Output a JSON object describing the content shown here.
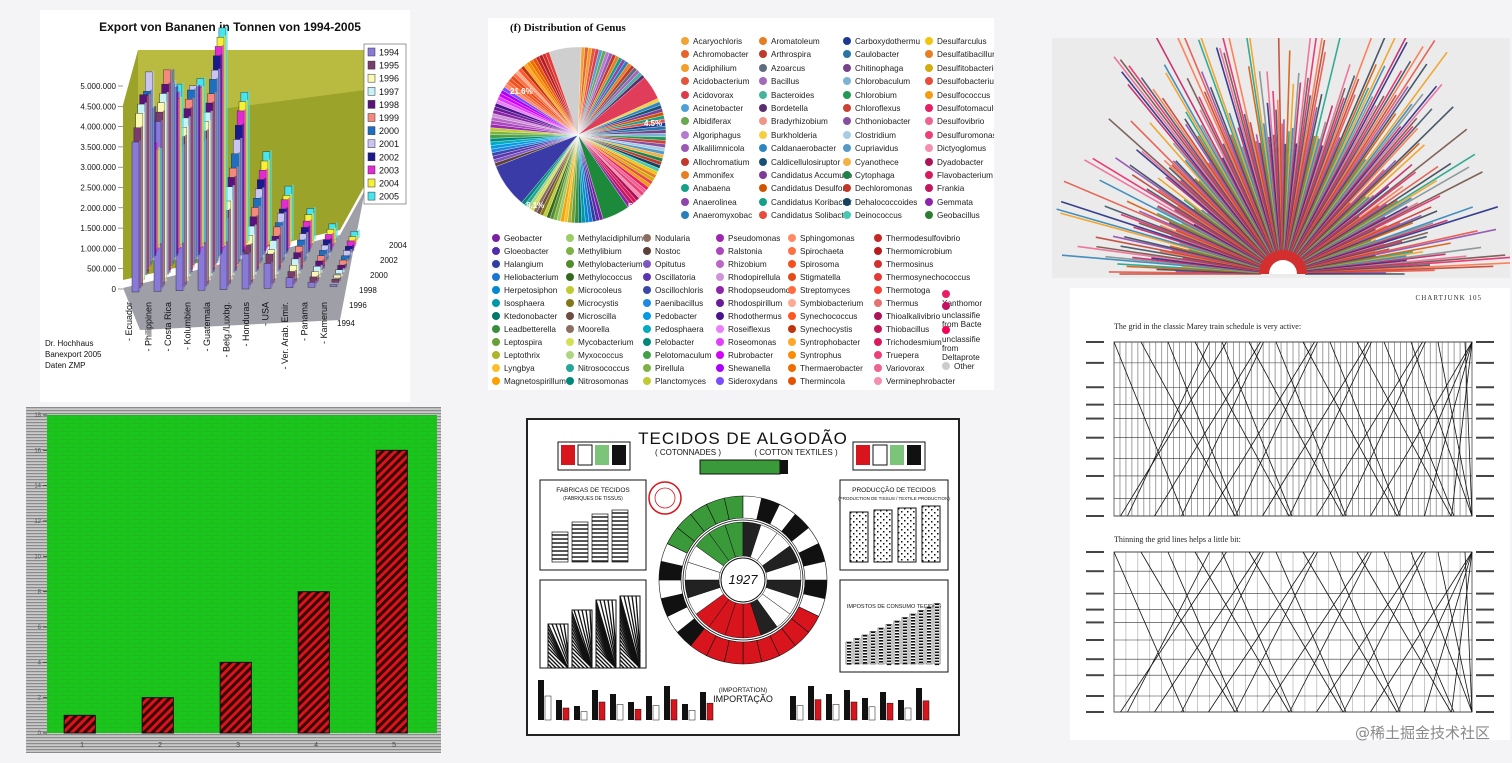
{
  "watermark": "@稀土掘金技术社区",
  "banana": {
    "title": "Export von Bananen in Tonnen von 1994-2005",
    "source_lines": [
      "Dr. Hochhaus",
      "Banexport 2005",
      "Daten ZMP"
    ],
    "colors": [
      "#8a7ad8",
      "#7a3c6c",
      "#fbf7b5",
      "#c8f3f6",
      "#58147a",
      "#f48a7e",
      "#1f6fc0",
      "#c9c4f2",
      "#1b1a8c",
      "#e32bd3",
      "#f7f036",
      "#47e5ee"
    ]
  },
  "genus": {
    "title": "(f) Distribution of Genus",
    "pie_labels": [
      "21.6%",
      "4.5%",
      "8.1%",
      "5%"
    ],
    "legend_top": [
      [
        [
          "Acaryochloris",
          "#f2a334"
        ],
        [
          "Achromobacter",
          "#e8632b"
        ],
        [
          "Acidiphilium",
          "#f39d2a"
        ],
        [
          "Acidobacterium",
          "#e3553c"
        ],
        [
          "Acidovorax",
          "#dc3c4a"
        ],
        [
          "Acinetobacter",
          "#4fa0d8"
        ],
        [
          "Albidiferax",
          "#6aa84f"
        ],
        [
          "Algoriphagus",
          "#b47ad1"
        ],
        [
          "Alkalilimnicola",
          "#9b59b6"
        ],
        [
          "Allochromatium",
          "#c0392b"
        ],
        [
          "Ammonifex",
          "#e67e22"
        ],
        [
          "Anabaena",
          "#16a085"
        ],
        [
          "Anaerolinea",
          "#8e44ad"
        ],
        [
          "Anaeromyxobac",
          "#2980b9"
        ]
      ],
      [
        [
          "Aromatoleum",
          "#e67e22"
        ],
        [
          "Arthrospira",
          "#c0392b"
        ],
        [
          "Azoarcus",
          "#5d6d7e"
        ],
        [
          "Bacillus",
          "#a569bd"
        ],
        [
          "Bacteroides",
          "#45b39d"
        ],
        [
          "Bordetella",
          "#5b2c6f"
        ],
        [
          "Bradyrhizobium",
          "#f1948a"
        ],
        [
          "Burkholderia",
          "#f4d03f"
        ],
        [
          "Caldanaerobacter",
          "#2e86c1"
        ],
        [
          "Caldicellulosiruptor",
          "#1a5276"
        ],
        [
          "Candidatus Accumulib",
          "#7d3c98"
        ],
        [
          "Candidatus Desulforu",
          "#d35400"
        ],
        [
          "Candidatus Koribacter",
          "#16a085"
        ],
        [
          "Candidatus Solibacter",
          "#e74c3c"
        ]
      ],
      [
        [
          "Carboxydothermu",
          "#1f3a93"
        ],
        [
          "Caulobacter",
          "#2874a6"
        ],
        [
          "Chitinophaga",
          "#76448a"
        ],
        [
          "Chlorobaculum",
          "#7fb3d5"
        ],
        [
          "Chlorobium",
          "#229954"
        ],
        [
          "Chloroflexus",
          "#cb4335"
        ],
        [
          "Chthoniobacter",
          "#884ea0"
        ],
        [
          "Clostridium",
          "#a9cce3"
        ],
        [
          "Cupriavidus",
          "#5499c7"
        ],
        [
          "Cyanothece",
          "#f5b041"
        ],
        [
          "Cytophaga",
          "#1d8348"
        ],
        [
          "Dechloromonas",
          "#c0392b"
        ],
        [
          "Dehalococcoides",
          "#154360"
        ],
        [
          "Deinococcus",
          "#48c9b0"
        ]
      ],
      [
        [
          "Desulfarculus",
          "#f1c40f"
        ],
        [
          "Desulfatibacillum",
          "#e67e22"
        ],
        [
          "Desulfitobacteriu",
          "#d4ac0d"
        ],
        [
          "Desulfobacteriu",
          "#e74c3c"
        ],
        [
          "Desulfococcus",
          "#f39c12"
        ],
        [
          "Desulfotomaculu",
          "#e91e63"
        ],
        [
          "Desulfovibrio",
          "#f06292"
        ],
        [
          "Desulfuromonas",
          "#ec407a"
        ],
        [
          "Dictyoglomus",
          "#f48fb1"
        ],
        [
          "Dyadobacter",
          "#ad1457"
        ],
        [
          "Flavobacterium",
          "#d81b60"
        ],
        [
          "Frankia",
          "#c2185b"
        ],
        [
          "Gemmata",
          "#8e24aa"
        ],
        [
          "Geobacillus",
          "#2e7d32"
        ]
      ]
    ],
    "legend_bottom": [
      [
        [
          "Geobacter",
          "#7b1fa2"
        ],
        [
          "Gloeobacter",
          "#512da8"
        ],
        [
          "Halangium",
          "#303f9f"
        ],
        [
          "Heliobacterium",
          "#1976d2"
        ],
        [
          "Herpetosiphon",
          "#0288d1"
        ],
        [
          "Isosphaera",
          "#0097a7"
        ],
        [
          "Ktedonobacter",
          "#00796b"
        ],
        [
          "Leadbetterella",
          "#388e3c"
        ],
        [
          "Leptospira",
          "#689f38"
        ],
        [
          "Leptothrix",
          "#afb42b"
        ],
        [
          "Lyngbya",
          "#fbc02d"
        ],
        [
          "Magnetospirillum",
          "#ffa000"
        ]
      ],
      [
        [
          "Methylacidiphilum",
          "#9ccc65"
        ],
        [
          "Methylibium",
          "#7cb342"
        ],
        [
          "Methylobacterium",
          "#558b2f"
        ],
        [
          "Methylococcus",
          "#33691e"
        ],
        [
          "Microcoleus",
          "#c0ca33"
        ],
        [
          "Microcystis",
          "#827717"
        ],
        [
          "Microscilla",
          "#6d4c41"
        ],
        [
          "Moorella",
          "#8d6e63"
        ],
        [
          "Mycobacterium",
          "#d4e157"
        ],
        [
          "Myxococcus",
          "#aed581"
        ],
        [
          "Nitrosococcus",
          "#26a69a"
        ],
        [
          "Nitrosomonas",
          "#00897b"
        ]
      ],
      [
        [
          "Nodularia",
          "#8d6e63"
        ],
        [
          "Nostoc",
          "#5d4037"
        ],
        [
          "Opitutus",
          "#7e57c2"
        ],
        [
          "Oscillatoria",
          "#5e35b1"
        ],
        [
          "Oscillochloris",
          "#3949ab"
        ],
        [
          "Paenibacillus",
          "#1e88e5"
        ],
        [
          "Pedobacter",
          "#039be5"
        ],
        [
          "Pedosphaera",
          "#00acc1"
        ],
        [
          "Pelobacter",
          "#00897b"
        ],
        [
          "Pelotomaculum",
          "#43a047"
        ],
        [
          "Pirellula",
          "#7cb342"
        ],
        [
          "Planctomyces",
          "#c0ca33"
        ]
      ],
      [
        [
          "Pseudomonas",
          "#9c27b0"
        ],
        [
          "Ralstonia",
          "#ab47bc"
        ],
        [
          "Rhizobium",
          "#ba68c8"
        ],
        [
          "Rhodopirellula",
          "#ce93d8"
        ],
        [
          "Rhodopseudomc",
          "#8e24aa"
        ],
        [
          "Rhodospirillum",
          "#6a1b9a"
        ],
        [
          "Rhodothermus",
          "#4a148c"
        ],
        [
          "Roseiflexus",
          "#ea80fc"
        ],
        [
          "Roseomonas",
          "#e040fb"
        ],
        [
          "Rubrobacter",
          "#d500f9"
        ],
        [
          "Shewanella",
          "#aa00ff"
        ],
        [
          "Sideroxydans",
          "#7c4dff"
        ]
      ],
      [
        [
          "Sphingomonas",
          "#ff8a65"
        ],
        [
          "Spirochaeta",
          "#ff7043"
        ],
        [
          "Spirosoma",
          "#f4511e"
        ],
        [
          "Stigmatella",
          "#e64a19"
        ],
        [
          "Streptomyces",
          "#ff6e40"
        ],
        [
          "Symbiobacterium",
          "#ffab91"
        ],
        [
          "Synechococcus",
          "#ff5722"
        ],
        [
          "Synechocystis",
          "#bf360c"
        ],
        [
          "Syntrophobacter",
          "#ffa726"
        ],
        [
          "Syntrophus",
          "#fb8c00"
        ],
        [
          "Thermaerobacter",
          "#ef6c00"
        ],
        [
          "Thermincola",
          "#e65100"
        ]
      ],
      [
        [
          "Thermodesulfovibrio",
          "#c62828"
        ],
        [
          "Thermomicrobium",
          "#b71c1c"
        ],
        [
          "Thermosinus",
          "#d32f2f"
        ],
        [
          "Thermosynechococcus",
          "#e53935"
        ],
        [
          "Thermotoga",
          "#f44336"
        ],
        [
          "Thermus",
          "#e57373"
        ],
        [
          "Thioalkalivibrio",
          "#ad1457"
        ],
        [
          "Thiobacillus",
          "#c2185b"
        ],
        [
          "Trichodesmium",
          "#d81b60"
        ],
        [
          "Truepera",
          "#ec407a"
        ],
        [
          "Variovorax",
          "#f06292"
        ],
        [
          "Verminephrobacter",
          "#f48fb1"
        ]
      ],
      [
        [
          "Xanthomor",
          "#e91e63"
        ],
        [
          "unclassifie from Bacte",
          "#c51162"
        ],
        [
          "unclassifie from Deltaprote",
          "#f50057"
        ],
        [
          "Other",
          "#cccccc"
        ]
      ]
    ]
  },
  "green_bar": {
    "chart_data": {
      "type": "bar",
      "categories": [
        "1",
        "2",
        "3",
        "4",
        "5"
      ],
      "values": [
        1,
        2,
        4,
        8,
        16
      ],
      "ylim": [
        0,
        18
      ],
      "grid": false
    }
  },
  "algodao": {
    "title": "TECIDOS DE ALGODÃO",
    "subtitle_left": "( COTONNADES )",
    "subtitle_right": "( COTTON TEXTILES )",
    "left_box_title": "FABRICAS DE TECIDOS",
    "left_box_sub": "(FABRIQUES DE TISSUS)",
    "right_box_title": "PRODUCÇÃO DE TECIDOS",
    "right_box_sub": "(PRODUCTION DE TISSUS / TEXTILE PRODUCTION)",
    "lower_right_title": "IMPOSTOS DE CONSUMO TECIDOS",
    "center_year": "1927",
    "bottom_label_top": "(IMPORTATION)",
    "bottom_label": "IMPORTAÇÃO"
  },
  "chartjunk": {
    "header": "CHARTJUNK   105",
    "caption_top": "The grid in the classic Marey train schedule is very active:",
    "caption_bottom": "Thinning the grid lines helps a little bit:"
  }
}
